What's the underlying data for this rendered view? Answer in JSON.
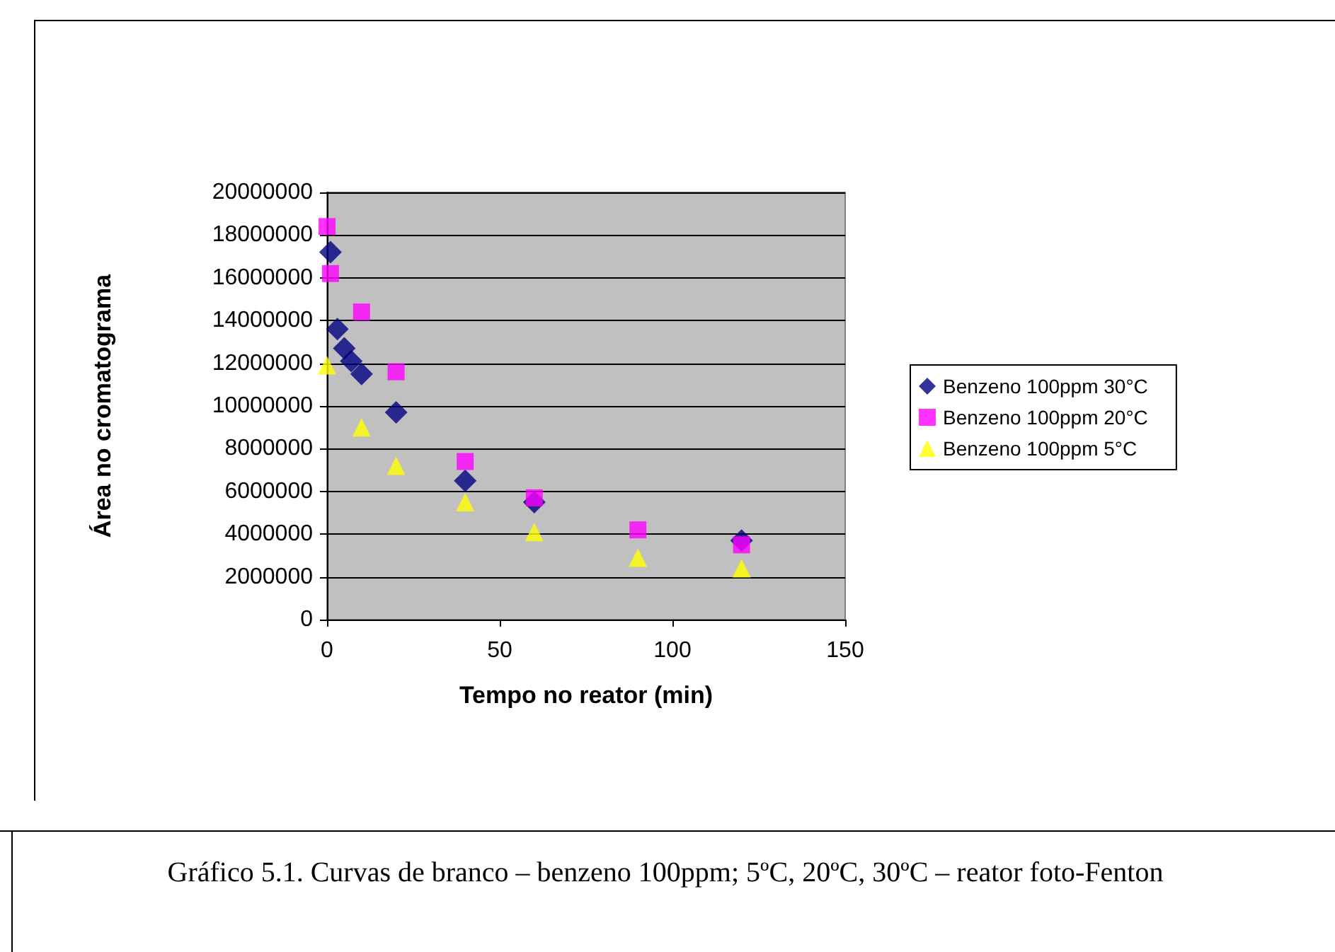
{
  "chart_data": {
    "type": "scatter",
    "xlabel": "Tempo no reator (min)",
    "ylabel": "Área no cromatograma",
    "annotations": [
      "Gráfico 5.1. Curvas de branco – benzeno 100ppm; 5ºC, 20ºC, 30ºC – reator foto-Fenton"
    ],
    "series": [
      {
        "name": "Benzeno 100ppm 30°C",
        "color": "#000080",
        "marker": "diamond",
        "x": [
          1,
          3,
          5,
          7,
          10,
          20,
          40,
          60,
          90,
          120
        ],
        "values": [
          17200000,
          13600000,
          12700000,
          12100000,
          11500000,
          9700000,
          6500000,
          5500000,
          null,
          3700000
        ]
      },
      {
        "name": "Benzeno 100ppm 20°C",
        "color": "#ff00ff",
        "marker": "square",
        "x": [
          0,
          1,
          10,
          20,
          40,
          60,
          90,
          120
        ],
        "values": [
          18400000,
          16200000,
          14400000,
          11600000,
          7400000,
          5700000,
          4200000,
          3500000
        ]
      },
      {
        "name": "Benzeno 100ppm 5°C",
        "color": "#ffff00",
        "marker": "triangle",
        "x": [
          0,
          10,
          20,
          40,
          60,
          90,
          120
        ],
        "values": [
          11900000,
          9000000,
          7200000,
          5500000,
          4100000,
          2900000,
          2400000
        ]
      }
    ],
    "xlim": [
      0,
      150
    ],
    "xticks": [
      0,
      50,
      100,
      150
    ],
    "ylim": [
      0,
      20000000
    ],
    "yticks": [
      0,
      2000000,
      4000000,
      6000000,
      8000000,
      10000000,
      12000000,
      14000000,
      16000000,
      18000000,
      20000000
    ],
    "grid": "y",
    "legend": "right"
  }
}
